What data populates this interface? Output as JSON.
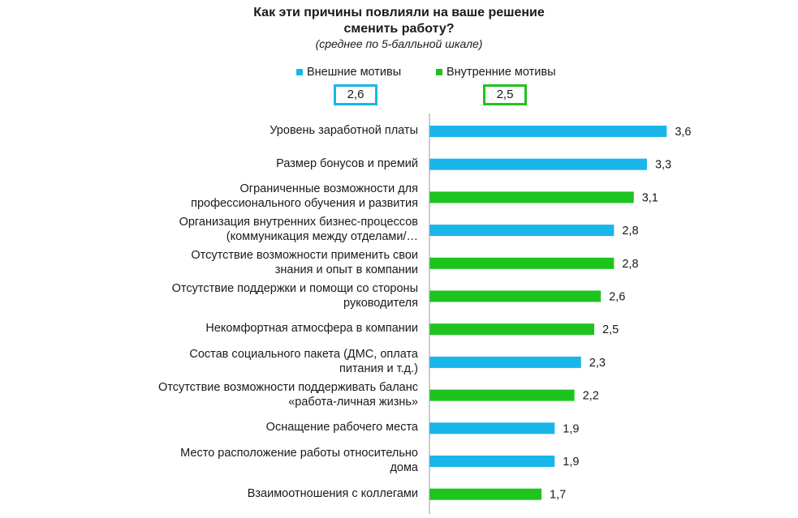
{
  "chart_data": {
    "type": "bar",
    "orientation": "horizontal",
    "title_line1": "Как эти причины повлияли на ваше решение",
    "title_line2": "сменить работу?",
    "subtitle": "(среднее по 5-балльной шкале)",
    "xlim": [
      0,
      5
    ],
    "grid": false,
    "legend_position": "top",
    "legend": [
      {
        "name": "Внешние мотивы",
        "color": "#19b6ea",
        "average": "2,6"
      },
      {
        "name": "Внутренние мотивы",
        "color": "#1ec41e",
        "average": "2,5"
      }
    ],
    "categories": [
      {
        "label1": "Уровень заработной платы",
        "label2": "",
        "value": 3.6,
        "value_label": "3,6",
        "group": 0
      },
      {
        "label1": "Размер бонусов и премий",
        "label2": "",
        "value": 3.3,
        "value_label": "3,3",
        "group": 0
      },
      {
        "label1": "Ограниченные возможности для",
        "label2": "профессионального обучения и развития",
        "value": 3.1,
        "value_label": "3,1",
        "group": 1
      },
      {
        "label1": "Организация внутренних бизнес-процессов",
        "label2": "(коммуникация между отделами/…",
        "value": 2.8,
        "value_label": "2,8",
        "group": 0
      },
      {
        "label1": "Отсутствие возможности применить свои",
        "label2": "знания и опыт в компании",
        "value": 2.8,
        "value_label": "2,8",
        "group": 1
      },
      {
        "label1": "Отсутствие поддержки  и помощи со стороны",
        "label2": "руководителя",
        "value": 2.6,
        "value_label": "2,6",
        "group": 1
      },
      {
        "label1": "Некомфортная атмосфера в компании",
        "label2": "",
        "value": 2.5,
        "value_label": "2,5",
        "group": 1
      },
      {
        "label1": "Состав социального пакета (ДМС, оплата",
        "label2": "питания и т.д.)",
        "value": 2.3,
        "value_label": "2,3",
        "group": 0
      },
      {
        "label1": "Отсутствие возможности поддерживать баланс",
        "label2": "«работа-личная жизнь»",
        "value": 2.2,
        "value_label": "2,2",
        "group": 1
      },
      {
        "label1": "Оснащение рабочего места",
        "label2": "",
        "value": 1.9,
        "value_label": "1,9",
        "group": 0
      },
      {
        "label1": "Место расположение работы относительно",
        "label2": "дома",
        "value": 1.9,
        "value_label": "1,9",
        "group": 0
      },
      {
        "label1": "Взаимоотношения с коллегами",
        "label2": "",
        "value": 1.7,
        "value_label": "1,7",
        "group": 1
      }
    ]
  }
}
